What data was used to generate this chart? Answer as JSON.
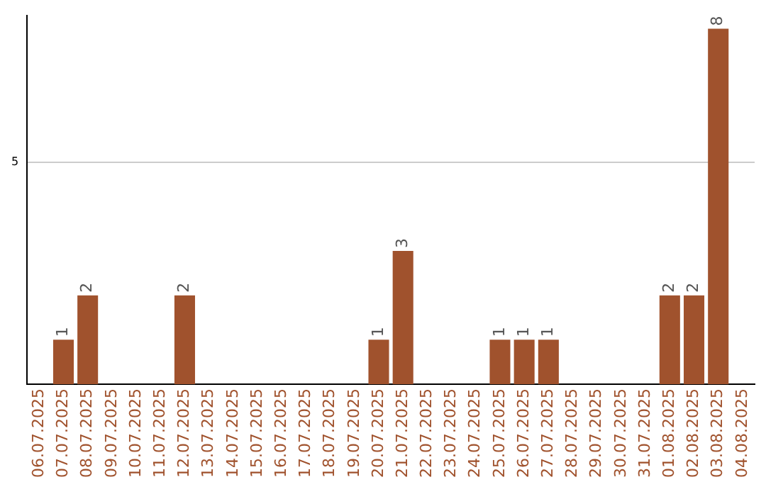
{
  "chart_data": {
    "type": "bar",
    "categories": [
      "06.07.2025",
      "07.07.2025",
      "08.07.2025",
      "09.07.2025",
      "10.07.2025",
      "11.07.2025",
      "12.07.2025",
      "13.07.2025",
      "14.07.2025",
      "15.07.2025",
      "16.07.2025",
      "17.07.2025",
      "18.07.2025",
      "19.07.2025",
      "20.07.2025",
      "21.07.2025",
      "22.07.2025",
      "23.07.2025",
      "24.07.2025",
      "25.07.2025",
      "26.07.2025",
      "27.07.2025",
      "28.07.2025",
      "29.07.2025",
      "30.07.2025",
      "31.07.2025",
      "01.08.2025",
      "02.08.2025",
      "03.08.2025",
      "04.08.2025"
    ],
    "values": [
      0,
      1,
      2,
      0,
      0,
      0,
      2,
      0,
      0,
      0,
      0,
      0,
      0,
      0,
      1,
      3,
      0,
      0,
      0,
      1,
      1,
      1,
      0,
      0,
      0,
      0,
      2,
      2,
      8,
      0
    ],
    "value_labels": [
      null,
      "1",
      "2",
      null,
      null,
      null,
      "2",
      null,
      null,
      null,
      null,
      null,
      null,
      null,
      "1",
      "3",
      null,
      null,
      null,
      "1",
      "1",
      "1",
      null,
      null,
      null,
      null,
      "2",
      "2",
      "8",
      null
    ],
    "color": "#a0522d",
    "ylim": [
      0,
      8.3
    ],
    "yticks": [
      5
    ],
    "grid": "y",
    "legend": false
  }
}
